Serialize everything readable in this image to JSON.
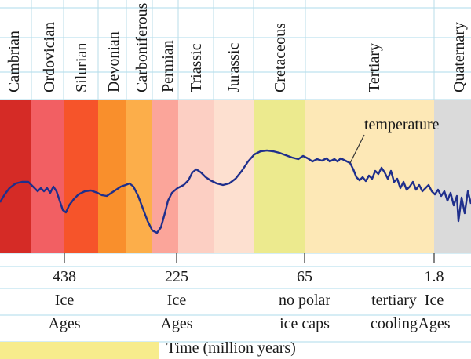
{
  "chart_data": {
    "type": "area",
    "title": "",
    "xlabel": "Time (million years)",
    "ylabel": "",
    "periods": [
      {
        "name": "Cambrian",
        "color": "#d52b26"
      },
      {
        "name": "Ordovician",
        "color": "#f25f63"
      },
      {
        "name": "Silurian",
        "color": "#f6542a"
      },
      {
        "name": "Devonian",
        "color": "#f98f2c"
      },
      {
        "name": "Carboniferous",
        "color": "#fcae4a"
      },
      {
        "name": "Permian",
        "color": "#fba59a"
      },
      {
        "name": "Triassic",
        "color": "#fccfc3"
      },
      {
        "name": "Jurassic",
        "color": "#fde0d0"
      },
      {
        "name": "Cretaceous",
        "color": "#ecea8e"
      },
      {
        "name": "Tertiary",
        "color": "#fde8b6"
      },
      {
        "name": "Quaternary",
        "color": "#dadada"
      }
    ],
    "x_ticks": [
      {
        "label": "438",
        "note_line1": "Ice",
        "note_line2": "Ages"
      },
      {
        "label": "225",
        "note_line1": "Ice",
        "note_line2": "Ages"
      },
      {
        "label": "65",
        "note_line1": "no polar",
        "note_line2": "ice caps"
      },
      {
        "label": "1.8",
        "note_line1": "Ice",
        "note_line2": "Ages"
      }
    ],
    "extra_annotations": [
      {
        "line1": "tertiary",
        "line2": "cooling"
      }
    ],
    "series": [
      {
        "name": "temperature",
        "color": "#1f2f8c"
      }
    ],
    "grid": true,
    "legend": "none"
  }
}
